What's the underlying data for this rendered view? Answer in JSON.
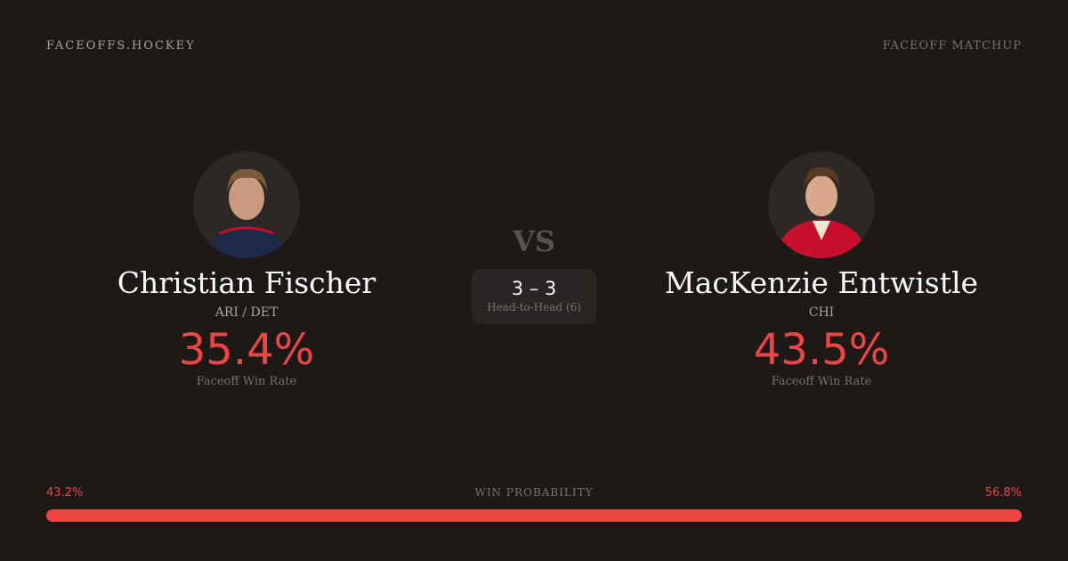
{
  "header": {
    "brand": "FACEOFFS.HOCKEY",
    "tag": "FACEOFF MATCHUP"
  },
  "players": [
    {
      "name": "Christian Fischer",
      "team": "ARI / DET",
      "win_rate": "35.4%",
      "win_rate_label": "Faceoff Win Rate",
      "jersey_color": "#1e2a4a"
    },
    {
      "name": "MacKenzie Entwistle",
      "team": "CHI",
      "win_rate": "43.5%",
      "win_rate_label": "Faceoff Win Rate",
      "jersey_color": "#c8102e"
    }
  ],
  "vs": "VS",
  "head_to_head": {
    "score": "3 – 3",
    "label": "Head-to-Head (6)"
  },
  "win_probability": {
    "title": "WIN PROBABILITY",
    "left": "43.2%",
    "right": "56.8%",
    "left_value": 43.2,
    "right_value": 56.8,
    "left_color": "#ef4444",
    "right_color": "#ef4444"
  },
  "colors": {
    "background": "#1c1917",
    "accent": "#ef4444"
  }
}
